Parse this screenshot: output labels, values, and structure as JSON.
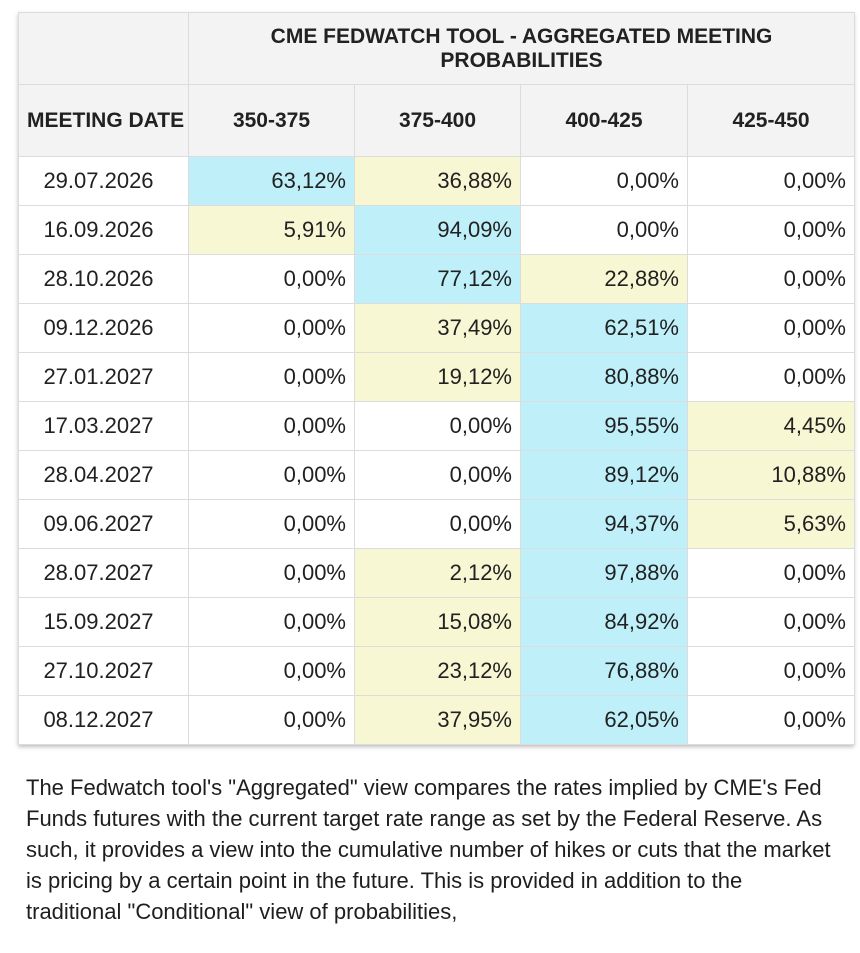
{
  "table": {
    "title": "CME FEDWATCH TOOL - AGGREGATED MEETING PROBABILITIES",
    "date_header": "MEETING DATE",
    "columns": [
      "350-375",
      "375-400",
      "400-425",
      "425-450"
    ],
    "rows": [
      {
        "date": "29.07.2026",
        "values": [
          "63,12%",
          "36,88%",
          "0,00%",
          "0,00%"
        ],
        "shade": [
          "hi",
          "mid",
          "none",
          "none"
        ]
      },
      {
        "date": "16.09.2026",
        "values": [
          "5,91%",
          "94,09%",
          "0,00%",
          "0,00%"
        ],
        "shade": [
          "mid",
          "hi",
          "none",
          "none"
        ]
      },
      {
        "date": "28.10.2026",
        "values": [
          "0,00%",
          "77,12%",
          "22,88%",
          "0,00%"
        ],
        "shade": [
          "none",
          "hi",
          "mid",
          "none"
        ]
      },
      {
        "date": "09.12.2026",
        "values": [
          "0,00%",
          "37,49%",
          "62,51%",
          "0,00%"
        ],
        "shade": [
          "none",
          "mid",
          "hi",
          "none"
        ]
      },
      {
        "date": "27.01.2027",
        "values": [
          "0,00%",
          "19,12%",
          "80,88%",
          "0,00%"
        ],
        "shade": [
          "none",
          "mid",
          "hi",
          "none"
        ]
      },
      {
        "date": "17.03.2027",
        "values": [
          "0,00%",
          "0,00%",
          "95,55%",
          "4,45%"
        ],
        "shade": [
          "none",
          "none",
          "hi",
          "mid"
        ]
      },
      {
        "date": "28.04.2027",
        "values": [
          "0,00%",
          "0,00%",
          "89,12%",
          "10,88%"
        ],
        "shade": [
          "none",
          "none",
          "hi",
          "mid"
        ]
      },
      {
        "date": "09.06.2027",
        "values": [
          "0,00%",
          "0,00%",
          "94,37%",
          "5,63%"
        ],
        "shade": [
          "none",
          "none",
          "hi",
          "mid"
        ]
      },
      {
        "date": "28.07.2027",
        "values": [
          "0,00%",
          "2,12%",
          "97,88%",
          "0,00%"
        ],
        "shade": [
          "none",
          "mid",
          "hi",
          "none"
        ]
      },
      {
        "date": "15.09.2027",
        "values": [
          "0,00%",
          "15,08%",
          "84,92%",
          "0,00%"
        ],
        "shade": [
          "none",
          "mid",
          "hi",
          "none"
        ]
      },
      {
        "date": "27.10.2027",
        "values": [
          "0,00%",
          "23,12%",
          "76,88%",
          "0,00%"
        ],
        "shade": [
          "none",
          "mid",
          "hi",
          "none"
        ]
      },
      {
        "date": "08.12.2027",
        "values": [
          "0,00%",
          "37,95%",
          "62,05%",
          "0,00%"
        ],
        "shade": [
          "none",
          "mid",
          "hi",
          "none"
        ]
      }
    ],
    "colors": {
      "hi": "#bff0fa",
      "mid": "#f7f7d4",
      "header_bg": "#f3f3f3"
    }
  },
  "caption": "The Fedwatch tool's \"Aggregated\" view compares the rates implied by CME's Fed Funds futures with the current target rate range as set by the Federal Reserve. As such, it provides a view into the cumulative number of hikes or cuts that the market is pricing by a certain point in the future. This is provided in addition to the traditional \"Conditional\" view of probabilities,"
}
